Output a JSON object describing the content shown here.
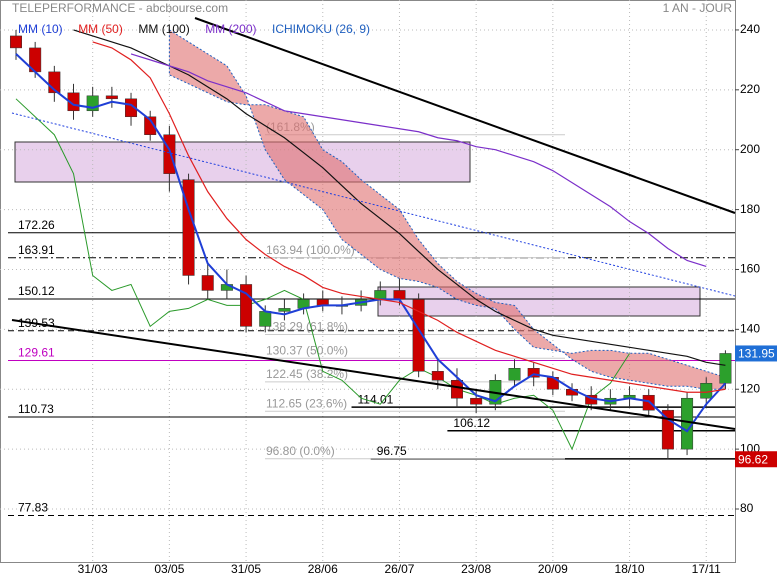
{
  "chart_data": {
    "type": "candlestick",
    "title": "TELEPERFORMANCE - abcbourse.com",
    "period": "1 AN - JOUR",
    "categories": [
      null,
      null,
      null,
      null,
      "31/03",
      null,
      null,
      null,
      "03/05",
      null,
      null,
      null,
      "31/05",
      null,
      null,
      null,
      "28/06",
      null,
      null,
      null,
      "26/07",
      null,
      null,
      null,
      "23/08",
      null,
      null,
      null,
      "20/09",
      null,
      null,
      null,
      "18/10",
      null,
      null,
      null,
      "17/11",
      null
    ],
    "open": [
      238,
      234,
      226,
      219,
      213,
      218,
      217,
      211,
      205,
      190,
      158,
      153,
      155,
      141,
      146,
      147,
      150,
      148,
      148,
      150,
      153,
      150,
      126,
      123,
      117,
      115,
      123,
      127,
      124,
      120,
      118,
      115,
      117,
      118,
      113,
      100,
      117,
      122
    ],
    "high": [
      240,
      236,
      228,
      222,
      221,
      221,
      219,
      213,
      208,
      192,
      162,
      160,
      158,
      148,
      150,
      152,
      153,
      151,
      153,
      156,
      157,
      152,
      130,
      127,
      120,
      125,
      130,
      129,
      126,
      122,
      121,
      120,
      121,
      120,
      115,
      119,
      124,
      133
    ],
    "low": [
      230,
      224,
      216,
      210,
      211,
      214,
      208,
      203,
      186,
      155,
      150,
      150,
      139,
      139,
      143,
      145,
      146,
      145,
      146,
      148,
      148,
      124,
      120,
      114,
      112,
      113,
      121,
      121,
      118,
      116,
      113,
      113,
      114,
      111,
      96.62,
      98,
      114,
      120
    ],
    "close": [
      234,
      226,
      219,
      213,
      218,
      217,
      211,
      205,
      192,
      158,
      153,
      155,
      141,
      146,
      147,
      150,
      148,
      148,
      150,
      153,
      150,
      126,
      123,
      117,
      115,
      123,
      127,
      124,
      120,
      118,
      115,
      117,
      118,
      113,
      100,
      117,
      122,
      131.95
    ],
    "up_color": "#2ca02c",
    "down_color": "#cc0000",
    "series": [
      {
        "name": "MM (10)",
        "color": "#1f3fd6",
        "values": [
          232,
          226,
          220,
          215,
          214,
          216,
          215,
          210,
          200,
          180,
          162,
          155,
          152,
          146,
          145,
          147,
          148,
          148,
          149,
          150,
          150,
          140,
          130,
          124,
          118,
          116,
          121,
          125,
          124,
          120,
          117,
          116,
          117,
          116,
          110,
          106,
          115,
          122
        ]
      },
      {
        "name": "MM (50)",
        "color": "#e02020",
        "values": [
          null,
          null,
          null,
          null,
          236,
          234,
          230,
          224,
          212,
          198,
          186,
          177,
          170,
          165,
          161,
          158,
          154,
          152,
          151,
          150,
          149,
          146,
          143,
          139,
          136,
          133,
          131,
          129,
          127,
          125,
          124,
          123,
          122,
          121,
          120,
          119,
          119,
          120
        ]
      },
      {
        "name": "MM (100)",
        "color": "#111111",
        "values": [
          null,
          null,
          null,
          240,
          238,
          236,
          234,
          231,
          228,
          225,
          221,
          217,
          212,
          208,
          204,
          199,
          194,
          188,
          182,
          177,
          172,
          166,
          160,
          155,
          150,
          146,
          143,
          140,
          138,
          137,
          136,
          135,
          134,
          133,
          132,
          131,
          129,
          128
        ]
      },
      {
        "name": "MM (200)",
        "color": "#7b2fc9",
        "values": [
          null,
          null,
          null,
          null,
          null,
          null,
          232,
          230,
          228,
          226,
          223,
          221,
          219,
          216,
          213,
          212,
          211,
          210,
          209,
          208,
          207,
          206,
          204,
          203,
          201,
          200,
          198,
          196,
          193,
          189,
          185,
          181,
          176,
          172,
          167,
          163,
          161,
          null
        ]
      }
    ],
    "ichimoku": {
      "name": "ICHIMOKU (26, 9)",
      "color": "#2060c0",
      "cloud_color": "#e07070",
      "lagging_color": "#2a9a2a",
      "span_a": [
        null,
        null,
        null,
        null,
        null,
        null,
        null,
        null,
        240,
        236,
        232,
        228,
        218,
        200,
        190,
        185,
        180,
        170,
        165,
        160,
        157,
        156,
        154,
        150,
        148,
        147,
        140,
        134,
        133,
        132,
        133,
        133,
        132,
        132,
        130,
        128,
        126,
        124
      ],
      "span_b": [
        null,
        null,
        null,
        null,
        null,
        null,
        null,
        null,
        225,
        222,
        219,
        216,
        215,
        215,
        213,
        211,
        200,
        196,
        190,
        185,
        180,
        170,
        162,
        156,
        152,
        149,
        148,
        140,
        135,
        130,
        126,
        124,
        123,
        122,
        121,
        121,
        120,
        120
      ],
      "lagging": [
        217,
        211,
        205,
        192,
        158,
        153,
        155,
        141,
        146,
        147,
        150,
        148,
        148,
        150,
        153,
        150,
        126,
        123,
        117,
        115,
        123,
        127,
        124,
        120,
        118,
        115,
        117,
        118,
        113,
        100,
        117,
        122,
        131.95,
        null,
        null,
        null,
        null,
        null
      ]
    },
    "ylim": [
      62.3,
      250
    ],
    "yticks": [
      80,
      100,
      120,
      140,
      160,
      180,
      200,
      220,
      240
    ],
    "grid": true,
    "levels": [
      {
        "value": 172.26,
        "dash": "solid",
        "color": "#000000"
      },
      {
        "value": 163.91,
        "dash": "dashdot",
        "color": "#000000"
      },
      {
        "value": 150.12,
        "dash": "solid",
        "color": "#000000"
      },
      {
        "value": 139.53,
        "dash": "dashed",
        "color": "#000000"
      },
      {
        "value": 129.61,
        "dash": "solid",
        "color": "#c000c0"
      },
      {
        "value": 110.73,
        "dash": "solid",
        "color": "#000000"
      },
      {
        "value": 77.83,
        "dash": "dashed",
        "color": "#000000"
      }
    ],
    "supports": [
      {
        "value": 114.01,
        "from": 18
      },
      {
        "value": 106.12,
        "from": 23
      },
      {
        "value": 96.75,
        "from": 19
      }
    ],
    "fibs": [
      {
        "value": 205,
        "label": "(161.8%)"
      },
      {
        "value": 163.94,
        "label": "163.94 (100.0%)"
      },
      {
        "value": 138.29,
        "label": "138.29 (61.8%)"
      },
      {
        "value": 130.37,
        "label": "130.37 (50.0%)"
      },
      {
        "value": 122.45,
        "label": "122.45 (38.2%)"
      },
      {
        "value": 112.65,
        "label": "112.65 (23.6%)"
      },
      {
        "value": 96.8,
        "label": "96.80 (0.0%)"
      }
    ],
    "last_price": {
      "value": 131.95,
      "color": "#1f6fd6"
    },
    "low_price": {
      "value": 96.62,
      "color": "#cc0000"
    }
  }
}
